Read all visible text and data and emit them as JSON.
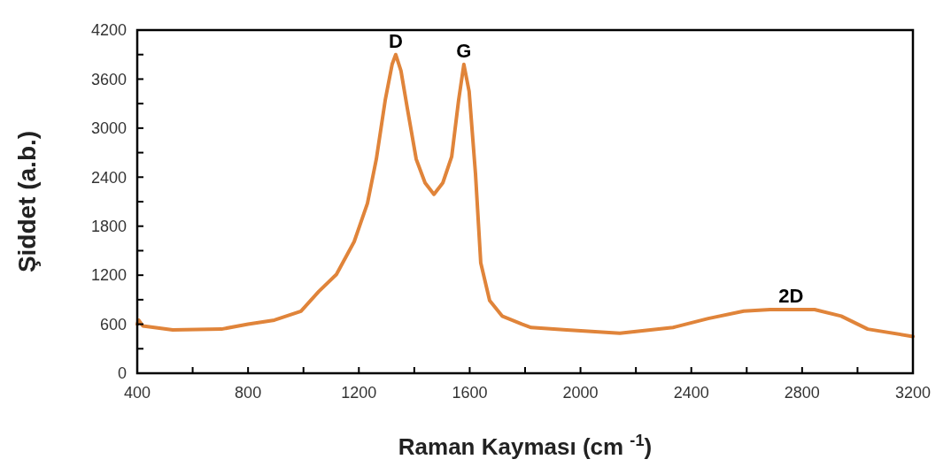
{
  "chart_data": {
    "type": "line",
    "xlabel": "Raman Kayması (cm $^{-1}$)",
    "ylabel": "Şiddet (a.b.)",
    "xlim": [
      400,
      3200
    ],
    "ylim": [
      0,
      4200
    ],
    "xticks": [
      400,
      {
        "value": 600,
        "label": null
      },
      800,
      {
        "value": 1000,
        "label": null
      },
      1200,
      {
        "value": 1400,
        "label": null
      },
      1600,
      {
        "value": 1800,
        "label": null
      },
      2000,
      {
        "value": 2200,
        "label": null
      },
      2400,
      {
        "value": 2600,
        "label": null
      },
      2800,
      {
        "value": 3000,
        "label": null
      },
      3200
    ],
    "yticks": [
      0,
      {
        "value": 300,
        "label": null
      },
      600,
      {
        "value": 900,
        "label": null
      },
      1200,
      {
        "value": 1500,
        "label": null
      },
      1800,
      {
        "value": 2100,
        "label": null
      },
      2400,
      {
        "value": 2700,
        "label": null
      },
      3000,
      {
        "value": 3300,
        "label": null
      },
      3600,
      {
        "value": 3900,
        "label": null
      },
      4200
    ],
    "grid": false,
    "marker": "none",
    "line_style": "solid",
    "annotations": [
      {
        "text": "D",
        "x": 1333,
        "y": 3900
      },
      {
        "text": "G",
        "x": 1579,
        "y": 3780
      },
      {
        "text": "2D",
        "x": 2760,
        "y": 780
      }
    ],
    "series": [
      {
        "color": "#e0843a",
        "x": [
          400,
          405,
          420,
          528,
          704,
          800,
          895,
          991,
          1055,
          1119,
          1183,
          1231,
          1263,
          1295,
          1320,
          1333,
          1352,
          1375,
          1407,
          1439,
          1471,
          1503,
          1535,
          1560,
          1579,
          1598,
          1621,
          1640,
          1672,
          1717,
          1790,
          1822,
          1950,
          2142,
          2334,
          2461,
          2589,
          2685,
          2845,
          2941,
          3037,
          3200
        ],
        "values": [
          600,
          650,
          580,
          530,
          540,
          600,
          650,
          760,
          1000,
          1210,
          1610,
          2080,
          2620,
          3340,
          3780,
          3900,
          3700,
          3240,
          2620,
          2330,
          2190,
          2330,
          2650,
          3340,
          3780,
          3450,
          2440,
          1350,
          890,
          700,
          600,
          560,
          530,
          490,
          560,
          670,
          760,
          780,
          780,
          700,
          540,
          450
        ]
      }
    ]
  }
}
